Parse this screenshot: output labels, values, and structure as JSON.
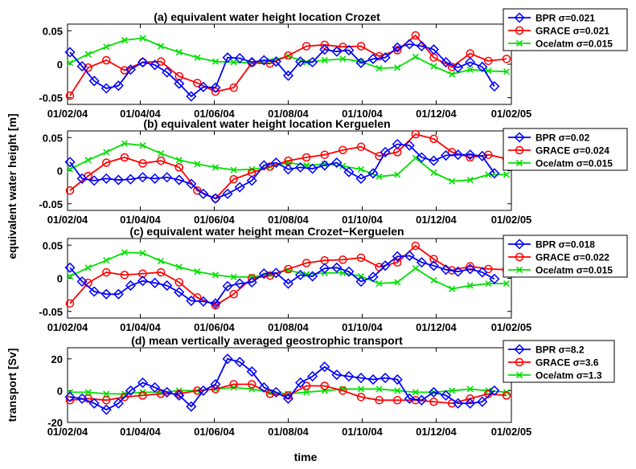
{
  "figure": {
    "ylabel_shared": "equivalent water height [m]",
    "xlabel": "time"
  },
  "colors": {
    "BPR": "#0000ff",
    "GRACE": "#ff0000",
    "Oce/atm": "#00e000"
  },
  "chart_data": [
    {
      "type": "line",
      "title": "(a) equivalent water height location Crozet",
      "ylabel": "",
      "xlim": [
        "2004-02-01",
        "2005-02-01"
      ],
      "ylim": [
        -0.06,
        0.06
      ],
      "yticks": [
        -0.05,
        0,
        0.05
      ],
      "ytick_labels": [
        "-0.05",
        "0",
        "0.05"
      ],
      "xtick_labels": [
        "01/02/04",
        "01/04/04",
        "01/06/04",
        "01/08/04",
        "01/10/04",
        "01/12/04",
        "01/02/05"
      ],
      "series": [
        {
          "name": "BPR",
          "legend": "BPR σ=0.021",
          "x": [
            "2004-02-03",
            "2004-02-13",
            "2004-02-23",
            "2004-03-04",
            "2004-03-14",
            "2004-03-24",
            "2004-04-03",
            "2004-04-13",
            "2004-04-23",
            "2004-05-03",
            "2004-05-13",
            "2004-05-23",
            "2004-06-02",
            "2004-06-12",
            "2004-06-22",
            "2004-07-02",
            "2004-07-12",
            "2004-07-22",
            "2004-08-01",
            "2004-08-11",
            "2004-08-21",
            "2004-08-31",
            "2004-09-10",
            "2004-09-20",
            "2004-09-30",
            "2004-10-10",
            "2004-10-20",
            "2004-10-30",
            "2004-11-09",
            "2004-11-19",
            "2004-11-29",
            "2004-12-09",
            "2004-12-19",
            "2004-12-29",
            "2005-01-08",
            "2005-01-18"
          ],
          "values": [
            0.018,
            -0.003,
            -0.025,
            -0.036,
            -0.032,
            -0.008,
            0.003,
            -0.001,
            -0.012,
            -0.029,
            -0.048,
            -0.034,
            -0.035,
            0.01,
            0.009,
            0.003,
            0.006,
            0.004,
            -0.017,
            0.004,
            0.003,
            0.022,
            0.019,
            0.021,
            0.002,
            0.008,
            0.01,
            0.025,
            0.03,
            0.027,
            0.022,
            0.003,
            -0.005,
            0.003,
            -0.004,
            -0.033
          ]
        },
        {
          "name": "GRACE",
          "legend": "GRACE σ=0.021",
          "x": [
            "2004-02-03",
            "2004-02-18",
            "2004-03-04",
            "2004-03-19",
            "2004-04-03",
            "2004-04-18",
            "2004-05-03",
            "2004-05-18",
            "2004-06-02",
            "2004-06-17",
            "2004-07-02",
            "2004-07-17",
            "2004-08-01",
            "2004-08-16",
            "2004-08-31",
            "2004-09-15",
            "2004-09-30",
            "2004-10-15",
            "2004-10-30",
            "2004-11-14",
            "2004-11-29",
            "2004-12-14",
            "2004-12-29",
            "2005-01-13",
            "2005-01-28"
          ],
          "values": [
            -0.047,
            -0.005,
            0.006,
            -0.009,
            0.003,
            0.004,
            -0.018,
            -0.028,
            -0.041,
            -0.035,
            0.002,
            0.001,
            0.013,
            0.027,
            0.029,
            0.026,
            0.027,
            0.012,
            0.021,
            0.043,
            0.01,
            -0.004,
            0.016,
            0.005,
            0.008
          ]
        },
        {
          "name": "Oce/atm",
          "legend": "Oce/atm  σ=0.015",
          "x": [
            "2004-02-03",
            "2004-02-18",
            "2004-03-04",
            "2004-03-19",
            "2004-04-03",
            "2004-04-18",
            "2004-05-03",
            "2004-05-18",
            "2004-06-02",
            "2004-06-17",
            "2004-07-02",
            "2004-07-17",
            "2004-08-01",
            "2004-08-16",
            "2004-08-31",
            "2004-09-15",
            "2004-09-30",
            "2004-10-15",
            "2004-10-30",
            "2004-11-14",
            "2004-11-29",
            "2004-12-14",
            "2004-12-29",
            "2005-01-13",
            "2005-01-28"
          ],
          "values": [
            0.002,
            0.015,
            0.026,
            0.036,
            0.039,
            0.027,
            0.018,
            0.01,
            0.004,
            0.003,
            0.002,
            0.005,
            0.012,
            0.003,
            0.006,
            0.008,
            0.004,
            -0.006,
            -0.005,
            0.011,
            -0.003,
            -0.015,
            -0.008,
            -0.01,
            -0.011
          ]
        }
      ]
    },
    {
      "type": "line",
      "title": "(b) equivalent water height location Kerguelen",
      "ylabel": "",
      "xlim": [
        "2004-02-01",
        "2005-02-01"
      ],
      "ylim": [
        -0.06,
        0.06
      ],
      "yticks": [
        -0.05,
        0,
        0.05
      ],
      "ytick_labels": [
        "-0.05",
        "0",
        "0.05"
      ],
      "xtick_labels": [
        "01/02/04",
        "01/04/04",
        "01/06/04",
        "01/08/04",
        "01/10/04",
        "01/12/04",
        "01/02/05"
      ],
      "series": [
        {
          "name": "BPR",
          "legend": "BPR σ=0.02",
          "x": [
            "2004-02-03",
            "2004-02-13",
            "2004-02-23",
            "2004-03-04",
            "2004-03-14",
            "2004-03-24",
            "2004-04-03",
            "2004-04-13",
            "2004-04-23",
            "2004-05-03",
            "2004-05-13",
            "2004-05-23",
            "2004-06-02",
            "2004-06-12",
            "2004-06-22",
            "2004-07-02",
            "2004-07-12",
            "2004-07-22",
            "2004-08-01",
            "2004-08-11",
            "2004-08-21",
            "2004-08-31",
            "2004-09-10",
            "2004-09-20",
            "2004-09-30",
            "2004-10-10",
            "2004-10-20",
            "2004-10-30",
            "2004-11-09",
            "2004-11-19",
            "2004-11-29",
            "2004-12-09",
            "2004-12-19",
            "2004-12-29",
            "2005-01-08",
            "2005-01-18"
          ],
          "values": [
            0.013,
            -0.012,
            -0.015,
            -0.012,
            -0.014,
            -0.013,
            -0.01,
            -0.012,
            -0.01,
            -0.014,
            -0.02,
            -0.035,
            -0.042,
            -0.035,
            -0.025,
            -0.015,
            0.008,
            0.012,
            0.002,
            0.005,
            0.003,
            0.008,
            0.012,
            -0.002,
            -0.012,
            -0.004,
            0.028,
            0.04,
            0.038,
            0.02,
            0.015,
            0.023,
            0.024,
            0.024,
            0.022,
            -0.004
          ]
        },
        {
          "name": "GRACE",
          "legend": "GRACE σ=0.024",
          "x": [
            "2004-02-03",
            "2004-02-18",
            "2004-03-04",
            "2004-03-19",
            "2004-04-03",
            "2004-04-18",
            "2004-05-03",
            "2004-05-18",
            "2004-06-02",
            "2004-06-17",
            "2004-07-02",
            "2004-07-17",
            "2004-08-01",
            "2004-08-16",
            "2004-08-31",
            "2004-09-15",
            "2004-09-30",
            "2004-10-15",
            "2004-10-30",
            "2004-11-14",
            "2004-11-29",
            "2004-12-14",
            "2004-12-29",
            "2005-01-13",
            "2005-01-28"
          ],
          "values": [
            -0.03,
            -0.008,
            0.012,
            0.02,
            0.011,
            0.015,
            0.005,
            -0.03,
            -0.042,
            -0.013,
            -0.003,
            0.006,
            0.015,
            0.02,
            0.024,
            0.031,
            0.036,
            0.022,
            0.028,
            0.055,
            0.048,
            0.028,
            0.02,
            0.024,
            0.018
          ]
        },
        {
          "name": "Oce/atm",
          "legend": "Oce/atm  σ=0.015",
          "x": [
            "2004-02-03",
            "2004-02-18",
            "2004-03-04",
            "2004-03-19",
            "2004-04-03",
            "2004-04-18",
            "2004-05-03",
            "2004-05-18",
            "2004-06-02",
            "2004-06-17",
            "2004-07-02",
            "2004-07-17",
            "2004-08-01",
            "2004-08-16",
            "2004-08-31",
            "2004-09-15",
            "2004-09-30",
            "2004-10-15",
            "2004-10-30",
            "2004-11-14",
            "2004-11-29",
            "2004-12-14",
            "2004-12-29",
            "2005-01-13",
            "2005-01-28"
          ],
          "values": [
            0.002,
            0.016,
            0.028,
            0.041,
            0.038,
            0.026,
            0.016,
            0.01,
            0.005,
            0.001,
            0.002,
            0.006,
            0.012,
            0.008,
            0.01,
            0.007,
            0.002,
            -0.009,
            -0.006,
            0.019,
            -0.003,
            -0.016,
            -0.014,
            -0.006,
            -0.006
          ]
        }
      ]
    },
    {
      "type": "line",
      "title": "(c) equivalent water height mean Crozet−Kerguelen",
      "ylabel": "",
      "xlim": [
        "2004-02-01",
        "2005-02-01"
      ],
      "ylim": [
        -0.06,
        0.06
      ],
      "yticks": [
        -0.05,
        0,
        0.05
      ],
      "ytick_labels": [
        "-0.05",
        "0",
        "0.05"
      ],
      "xtick_labels": [
        "01/02/04",
        "01/04/04",
        "01/06/04",
        "01/08/04",
        "01/10/04",
        "01/12/04",
        "01/02/05"
      ],
      "series": [
        {
          "name": "BPR",
          "legend": "BPR σ=0.018",
          "x": [
            "2004-02-03",
            "2004-02-13",
            "2004-02-23",
            "2004-03-04",
            "2004-03-14",
            "2004-03-24",
            "2004-04-03",
            "2004-04-13",
            "2004-04-23",
            "2004-05-03",
            "2004-05-13",
            "2004-05-23",
            "2004-06-02",
            "2004-06-12",
            "2004-06-22",
            "2004-07-02",
            "2004-07-12",
            "2004-07-22",
            "2004-08-01",
            "2004-08-11",
            "2004-08-21",
            "2004-08-31",
            "2004-09-10",
            "2004-09-20",
            "2004-09-30",
            "2004-10-10",
            "2004-10-20",
            "2004-10-30",
            "2004-11-09",
            "2004-11-19",
            "2004-11-29",
            "2004-12-09",
            "2004-12-19",
            "2004-12-29",
            "2005-01-08",
            "2005-01-18"
          ],
          "values": [
            0.016,
            -0.005,
            -0.02,
            -0.024,
            -0.024,
            -0.011,
            -0.004,
            -0.007,
            -0.011,
            -0.021,
            -0.034,
            -0.035,
            -0.038,
            -0.012,
            -0.008,
            -0.006,
            0.007,
            0.008,
            -0.008,
            0.005,
            0.003,
            0.015,
            0.016,
            0.01,
            -0.005,
            0.002,
            0.019,
            0.033,
            0.034,
            0.024,
            0.019,
            0.013,
            0.01,
            0.014,
            0.009,
            -0.001
          ]
        },
        {
          "name": "GRACE",
          "legend": "GRACE σ=0.022",
          "x": [
            "2004-02-03",
            "2004-02-18",
            "2004-03-04",
            "2004-03-19",
            "2004-04-03",
            "2004-04-18",
            "2004-05-03",
            "2004-05-18",
            "2004-06-02",
            "2004-06-17",
            "2004-07-02",
            "2004-07-17",
            "2004-08-01",
            "2004-08-16",
            "2004-08-31",
            "2004-09-15",
            "2004-09-30",
            "2004-10-15",
            "2004-10-30",
            "2004-11-14",
            "2004-11-29",
            "2004-12-14",
            "2004-12-29",
            "2005-01-13",
            "2005-01-28"
          ],
          "values": [
            -0.038,
            -0.007,
            0.009,
            0.005,
            0.007,
            0.009,
            -0.006,
            -0.029,
            -0.041,
            -0.024,
            0.0,
            0.004,
            0.014,
            0.023,
            0.027,
            0.028,
            0.031,
            0.017,
            0.024,
            0.049,
            0.029,
            0.012,
            0.018,
            0.014,
            0.013
          ]
        },
        {
          "name": "Oce/atm",
          "legend": "Oce/atm  σ=0.015",
          "x": [
            "2004-02-03",
            "2004-02-18",
            "2004-03-04",
            "2004-03-19",
            "2004-04-03",
            "2004-04-18",
            "2004-05-03",
            "2004-05-18",
            "2004-06-02",
            "2004-06-17",
            "2004-07-02",
            "2004-07-17",
            "2004-08-01",
            "2004-08-16",
            "2004-08-31",
            "2004-09-15",
            "2004-09-30",
            "2004-10-15",
            "2004-10-30",
            "2004-11-14",
            "2004-11-29",
            "2004-12-14",
            "2004-12-29",
            "2005-01-13",
            "2005-01-28"
          ],
          "values": [
            0.003,
            0.016,
            0.027,
            0.039,
            0.038,
            0.026,
            0.017,
            0.01,
            0.005,
            0.002,
            0.002,
            0.006,
            0.012,
            0.006,
            0.008,
            0.008,
            0.003,
            -0.008,
            -0.006,
            0.015,
            -0.003,
            -0.016,
            -0.011,
            -0.008,
            -0.008
          ]
        }
      ]
    },
    {
      "type": "line",
      "title": "(d) mean vertically averaged geostrophic transport",
      "ylabel": "transport [Sv]",
      "xlabel": "time",
      "xlim": [
        "2004-02-01",
        "2005-02-01"
      ],
      "ylim": [
        -20,
        27
      ],
      "yticks": [
        -20,
        0,
        20
      ],
      "ytick_labels": [
        "-20",
        "0",
        "20"
      ],
      "xtick_labels": [
        "01/02/04",
        "01/04/04",
        "01/06/04",
        "01/08/04",
        "01/10/04",
        "01/12/04",
        "01/02/05"
      ],
      "series": [
        {
          "name": "BPR",
          "legend": "BPR σ=8.2",
          "x": [
            "2004-02-03",
            "2004-02-13",
            "2004-02-23",
            "2004-03-04",
            "2004-03-14",
            "2004-03-24",
            "2004-04-03",
            "2004-04-13",
            "2004-04-23",
            "2004-05-03",
            "2004-05-13",
            "2004-05-23",
            "2004-06-02",
            "2004-06-12",
            "2004-06-22",
            "2004-07-02",
            "2004-07-12",
            "2004-07-22",
            "2004-08-01",
            "2004-08-11",
            "2004-08-21",
            "2004-08-31",
            "2004-09-10",
            "2004-09-20",
            "2004-09-30",
            "2004-10-10",
            "2004-10-20",
            "2004-10-30",
            "2004-11-09",
            "2004-11-19",
            "2004-11-29",
            "2004-12-09",
            "2004-12-19",
            "2004-12-29",
            "2005-01-08",
            "2005-01-18"
          ],
          "values": [
            -4,
            -5,
            -8,
            -12,
            -8,
            0,
            5,
            2,
            -1,
            -3,
            -10,
            0,
            4,
            20,
            18,
            12,
            2,
            -1,
            -5,
            5,
            9,
            15,
            10,
            9,
            8,
            7,
            8,
            7,
            -5,
            -6,
            -1,
            -3,
            -8,
            -8,
            -7,
            0
          ]
        },
        {
          "name": "GRACE",
          "legend": "GRACE σ=3.6",
          "x": [
            "2004-02-03",
            "2004-02-18",
            "2004-03-04",
            "2004-03-19",
            "2004-04-03",
            "2004-04-18",
            "2004-05-03",
            "2004-05-18",
            "2004-06-02",
            "2004-06-17",
            "2004-07-02",
            "2004-07-17",
            "2004-08-01",
            "2004-08-16",
            "2004-08-31",
            "2004-09-15",
            "2004-09-30",
            "2004-10-15",
            "2004-10-30",
            "2004-11-14",
            "2004-11-29",
            "2004-12-14",
            "2004-12-29",
            "2005-01-13",
            "2005-01-28"
          ],
          "values": [
            -6,
            -5,
            -6,
            -4,
            -3,
            -2,
            -2,
            0,
            1,
            4,
            4,
            -2,
            -3,
            3,
            3,
            0,
            -4,
            -6,
            -6,
            -6,
            -7,
            -8,
            -5,
            -2,
            -3
          ]
        },
        {
          "name": "Oce/atm",
          "legend": "Oce/atm  σ=1.3",
          "x": [
            "2004-02-03",
            "2004-02-18",
            "2004-03-04",
            "2004-03-19",
            "2004-04-03",
            "2004-04-18",
            "2004-05-03",
            "2004-05-18",
            "2004-06-02",
            "2004-06-17",
            "2004-07-02",
            "2004-07-17",
            "2004-08-01",
            "2004-08-16",
            "2004-08-31",
            "2004-09-15",
            "2004-09-30",
            "2004-10-15",
            "2004-10-30",
            "2004-11-14",
            "2004-11-29",
            "2004-12-14",
            "2004-12-29",
            "2005-01-13",
            "2005-01-28"
          ],
          "values": [
            -1,
            -1,
            -2,
            -2,
            -1,
            -1,
            0,
            0,
            1,
            2,
            1,
            -1,
            -2,
            -1,
            0,
            1,
            1,
            1,
            0,
            -1,
            -1,
            0,
            1,
            0,
            -1
          ]
        }
      ]
    }
  ]
}
